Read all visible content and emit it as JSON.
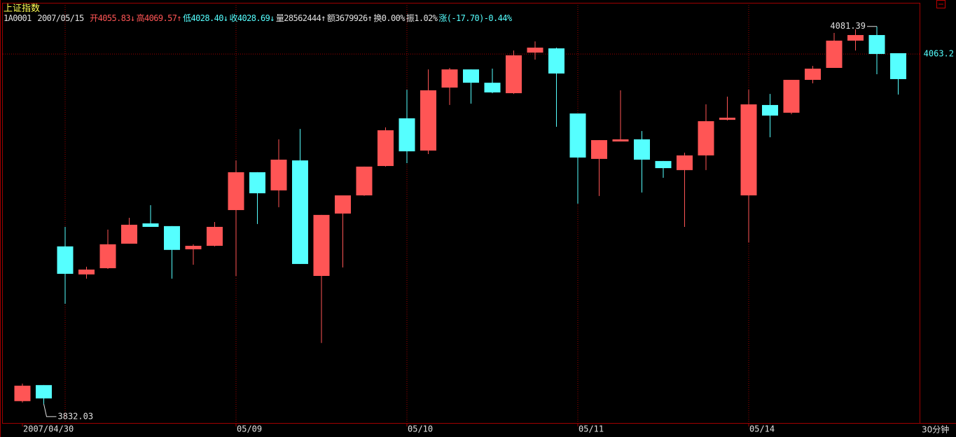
{
  "chart_data": {
    "type": "candlestick",
    "title": "上证指数",
    "header": {
      "code": "1A0001",
      "date": "2007/05/15",
      "fields": [
        {
          "text": "开4055.83↓",
          "color": "#ff5555"
        },
        {
          "text": "高4069.57↑",
          "color": "#ff5555"
        },
        {
          "text": "低4028.40↓",
          "color": "#55ffff"
        },
        {
          "text": "收4028.69↓",
          "color": "#55ffff"
        },
        {
          "text": "量28562444↑",
          "color": "#e0e0e0"
        },
        {
          "text": "额3679926↑",
          "color": "#e0e0e0"
        },
        {
          "text": "换0.00%",
          "color": "#e0e0e0"
        },
        {
          "text": "振1.02%",
          "color": "#e0e0e0"
        },
        {
          "text": "涨(-17.70)-0.44%",
          "color": "#55ffff"
        }
      ]
    },
    "period": "30分钟",
    "categories": [
      "2007/04/30",
      null,
      null,
      null,
      null,
      null,
      null,
      null,
      null,
      null,
      "05/09",
      null,
      null,
      null,
      null,
      null,
      null,
      null,
      "05/10",
      null,
      null,
      null,
      null,
      null,
      null,
      null,
      "05/11",
      null,
      null,
      null,
      null,
      null,
      null,
      null,
      "05/14",
      null,
      null,
      null,
      null,
      null,
      null,
      null
    ],
    "open": [
      3833.9,
      3844.5,
      3936.1,
      3917.6,
      3921.7,
      3937.9,
      3951.3,
      3949.5,
      3934.2,
      3936.5,
      3960.1,
      3985.1,
      3973.1,
      3992.9,
      3916.6,
      3957.8,
      3969.8,
      3989.2,
      4020.7,
      3999.4,
      4041.0,
      4053.0,
      4044.2,
      4037.3,
      4064.1,
      4066.9,
      4023.9,
      3993.9,
      4005.4,
      4006.8,
      3992.5,
      3986.5,
      3996.2,
      4019.7,
      3969.8,
      4029.5,
      4024.4,
      4046.1,
      4054.0,
      4072.0,
      4075.7,
      4063.7
    ],
    "high": [
      3845.5,
      3844.5,
      3949.0,
      3922.7,
      3947.2,
      3955.0,
      3963.3,
      3949.5,
      3937.5,
      3952.2,
      3992.9,
      3985.1,
      4006.8,
      4013.7,
      3956.9,
      3969.8,
      3988.8,
      4014.7,
      4039.6,
      4053.0,
      4054.0,
      4053.0,
      4053.5,
      4065.5,
      4071.5,
      4067.4,
      4023.9,
      4006.3,
      4039.2,
      4012.3,
      3992.5,
      3998.0,
      4029.9,
      4035.0,
      4039.6,
      4036.8,
      4046.1,
      4055.3,
      4077.1,
      4079.5,
      4081.39,
      4063.7
    ],
    "low": [
      3833.0,
      3832.03,
      3898.2,
      3914.8,
      3921.2,
      3937.9,
      3949.0,
      3914.8,
      3924.0,
      3936.1,
      3916.6,
      3950.9,
      3962.0,
      3924.5,
      3872.3,
      3922.2,
      3969.5,
      3988.8,
      3991.1,
      3997.1,
      4029.5,
      4030.4,
      4037.3,
      4036.8,
      4059.5,
      4015.1,
      3964.3,
      3969.4,
      4005.4,
      3971.7,
      3981.4,
      3949.0,
      3986.5,
      4019.3,
      3938.8,
      4008.2,
      4023.4,
      4043.8,
      4054.0,
      4065.5,
      4049.8,
      4036.4
    ],
    "close": [
      3844.1,
      3835.7,
      3918.0,
      3920.8,
      3937.5,
      3950.4,
      3949.0,
      3933.8,
      3936.5,
      3949.0,
      3985.1,
      3971.2,
      3993.4,
      3924.5,
      3956.9,
      3969.8,
      3988.8,
      4012.8,
      3998.9,
      4039.2,
      4053.0,
      4044.2,
      4037.8,
      4062.3,
      4067.4,
      4050.3,
      3994.8,
      4006.3,
      4006.8,
      3993.4,
      3987.8,
      3996.2,
      4018.8,
      4021.1,
      4029.9,
      4022.5,
      4046.1,
      4053.5,
      4072.0,
      4075.7,
      4063.2,
      4046.6
    ],
    "up_color": "#ff5555",
    "down_color": "#55ffff",
    "ylim": [
      3819,
      4097
    ],
    "yticks": [
      4063.2
    ],
    "grid": true
  }
}
